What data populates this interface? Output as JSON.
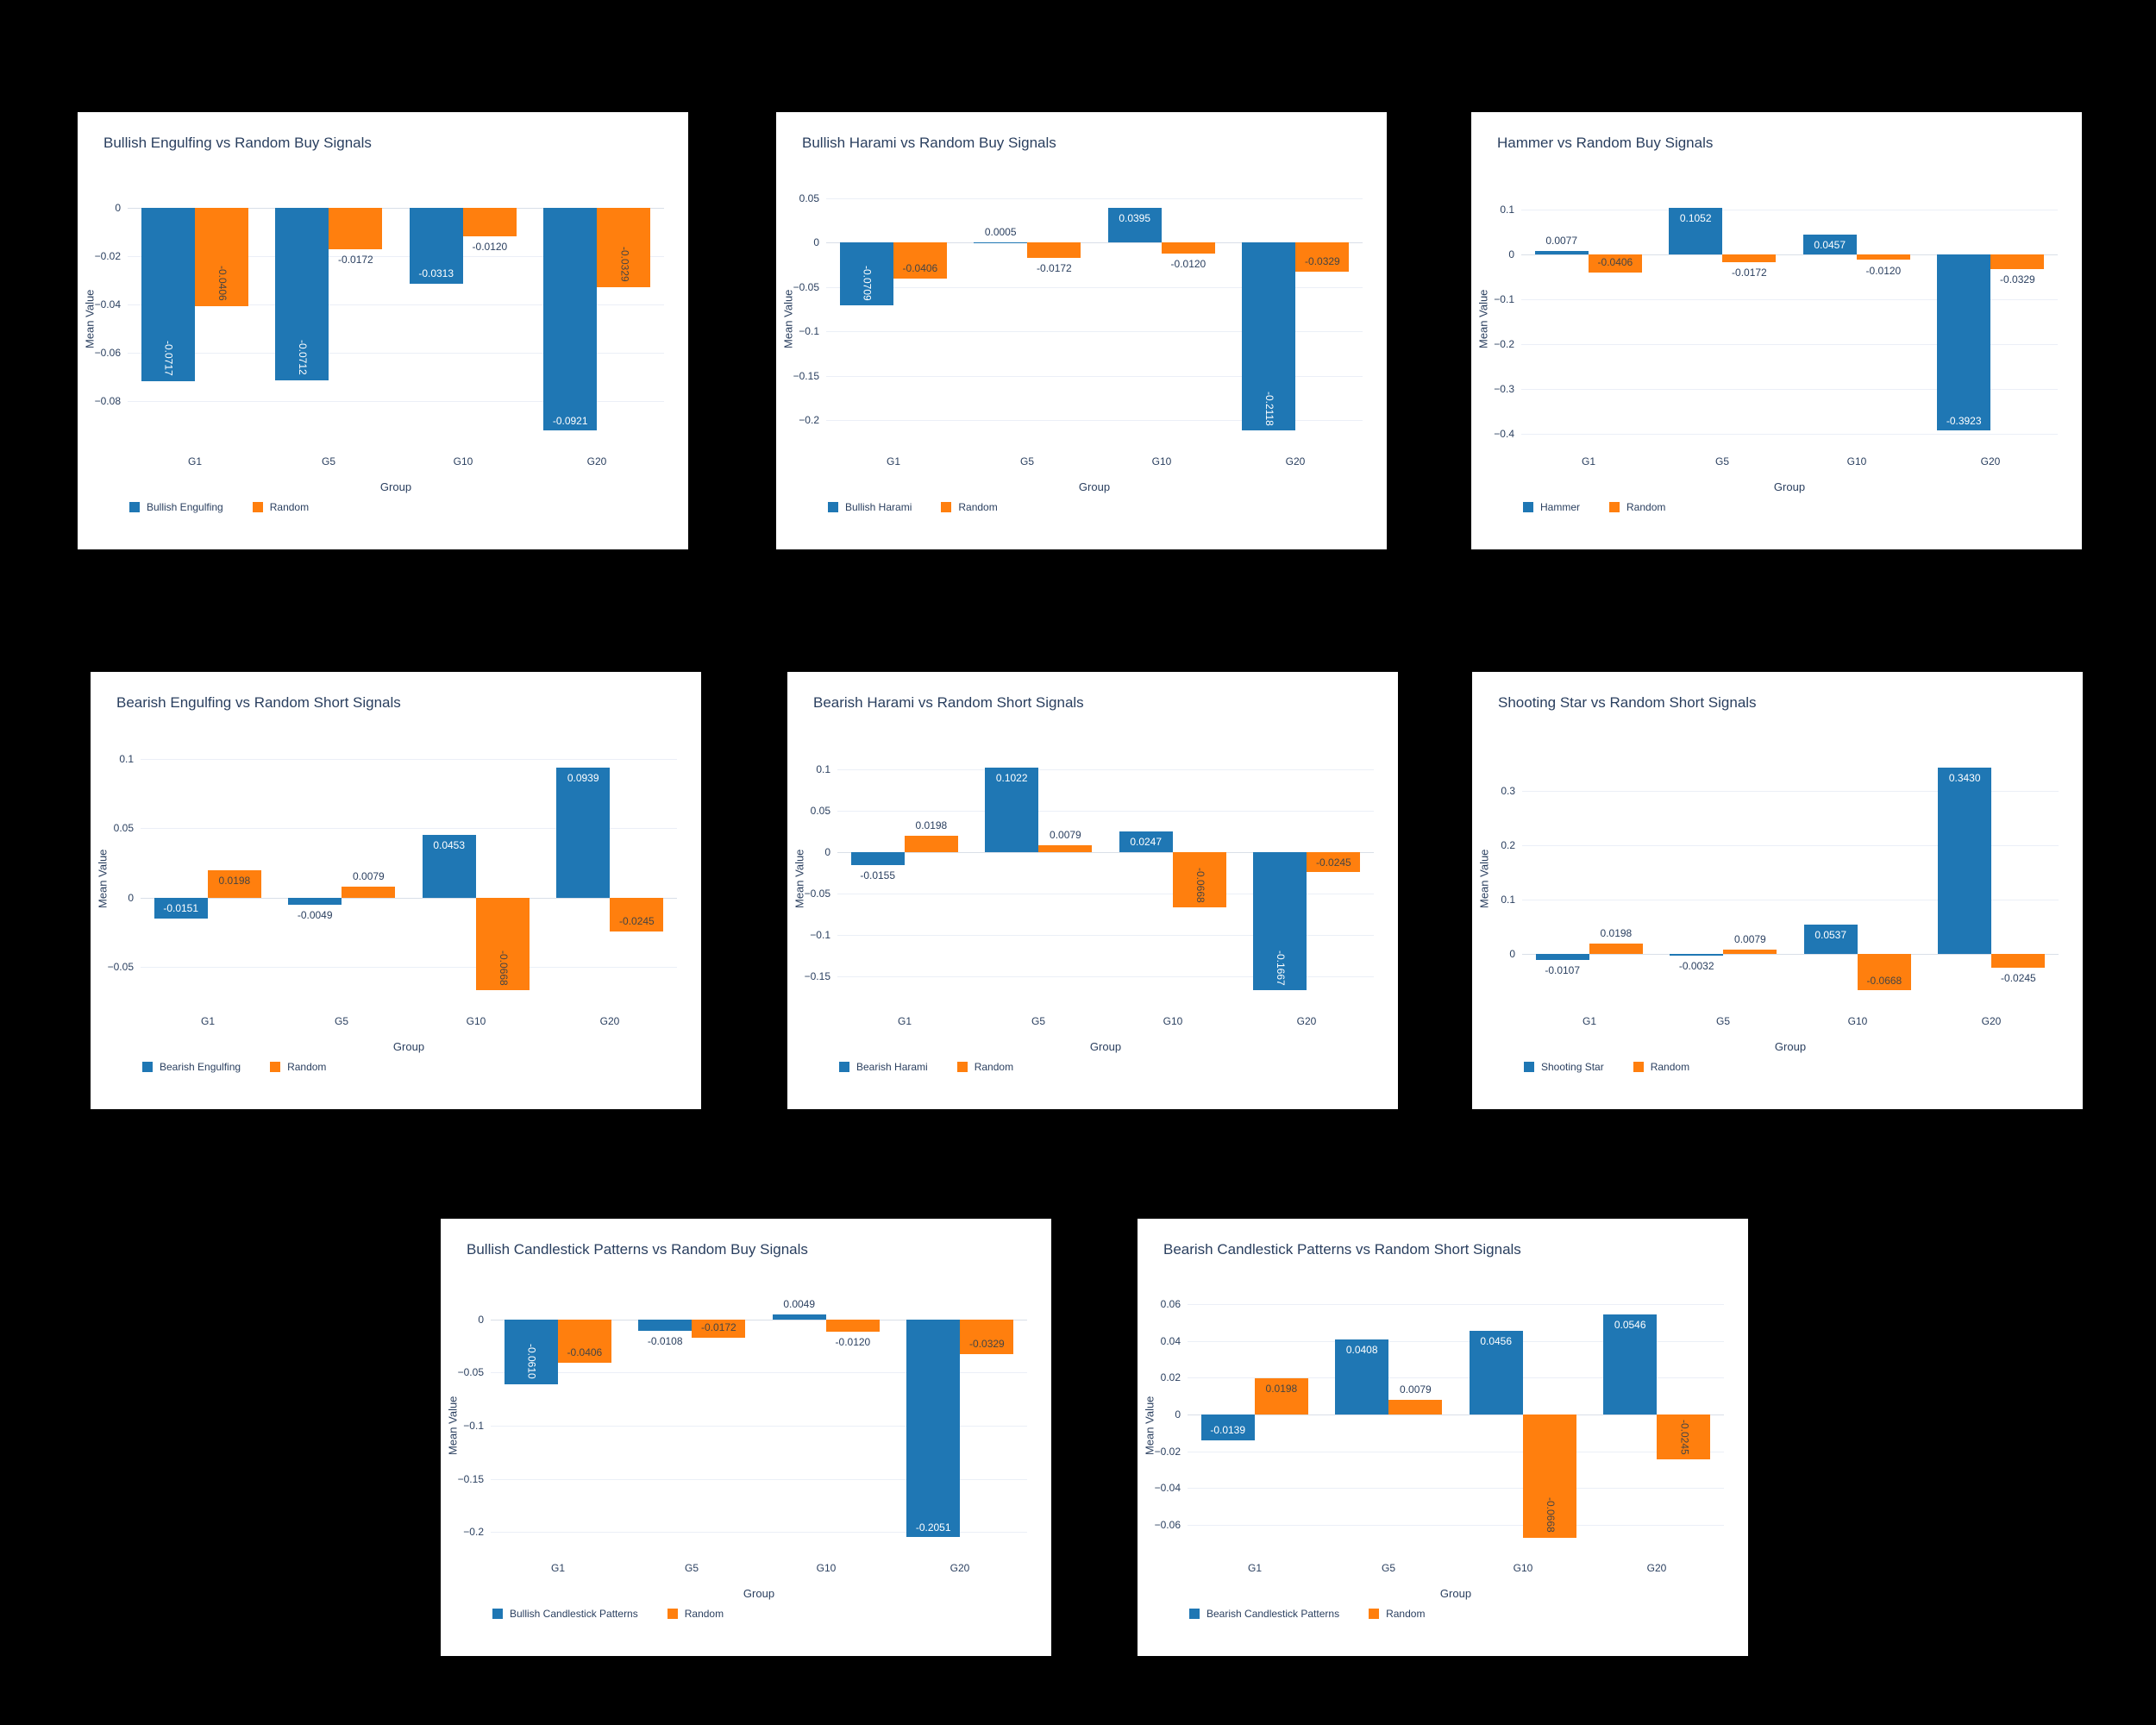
{
  "colors": {
    "blue": "#1f77b4",
    "orange": "#ff7f0e",
    "text": "#2a3f5f",
    "inside_blue_text": "#ffffff",
    "inside_orange_text": "#444444",
    "grid": "#ebeff7",
    "zero_line": "#d9dfe8",
    "panel_bg": "#ffffff",
    "page_bg": "#000000"
  },
  "chart_data": [
    {
      "type": "bar",
      "title": "Bullish Engulfing vs Random Buy Signals",
      "xlabel": "Group",
      "ylabel": "Mean Value",
      "categories": [
        "G1",
        "G5",
        "G10",
        "G20"
      ],
      "yticks": [
        {
          "v": 0,
          "label": "0"
        },
        {
          "v": -0.02,
          "label": "−0.02"
        },
        {
          "v": -0.04,
          "label": "−0.04"
        },
        {
          "v": -0.06,
          "label": "−0.06"
        },
        {
          "v": -0.08,
          "label": "−0.08"
        }
      ],
      "series": [
        {
          "name": "Bullish Engulfing",
          "color": "blue",
          "bars": [
            {
              "v": -0.0717,
              "label": "-0.0717",
              "pos": "in",
              "rot": true
            },
            {
              "v": -0.0712,
              "label": "-0.0712",
              "pos": "in",
              "rot": true
            },
            {
              "v": -0.0313,
              "label": "-0.0313",
              "pos": "in",
              "rot": false
            },
            {
              "v": -0.0921,
              "label": "-0.0921",
              "pos": "in",
              "rot": false
            }
          ]
        },
        {
          "name": "Random",
          "color": "orange",
          "bars": [
            {
              "v": -0.0406,
              "label": "-0.0406",
              "pos": "in",
              "rot": true
            },
            {
              "v": -0.0172,
              "label": "-0.0172",
              "pos": "out",
              "rot": false
            },
            {
              "v": -0.012,
              "label": "-0.0120",
              "pos": "out",
              "rot": false
            },
            {
              "v": -0.0329,
              "label": "-0.0329",
              "pos": "in",
              "rot": true
            }
          ]
        }
      ]
    },
    {
      "type": "bar",
      "title": "Bullish Harami vs Random Buy Signals",
      "xlabel": "Group",
      "ylabel": "Mean Value",
      "categories": [
        "G1",
        "G5",
        "G10",
        "G20"
      ],
      "yticks": [
        {
          "v": 0.05,
          "label": "0.05"
        },
        {
          "v": 0,
          "label": "0"
        },
        {
          "v": -0.05,
          "label": "−0.05"
        },
        {
          "v": -0.1,
          "label": "−0.1"
        },
        {
          "v": -0.15,
          "label": "−0.15"
        },
        {
          "v": -0.2,
          "label": "−0.2"
        }
      ],
      "series": [
        {
          "name": "Bullish Harami",
          "color": "blue",
          "bars": [
            {
              "v": -0.0709,
              "label": "-0.0709",
              "pos": "in",
              "rot": true
            },
            {
              "v": 0.0005,
              "label": "0.0005",
              "pos": "out",
              "rot": false
            },
            {
              "v": 0.0395,
              "label": "0.0395",
              "pos": "in",
              "rot": false
            },
            {
              "v": -0.2118,
              "label": "-0.2118",
              "pos": "in",
              "rot": true
            }
          ]
        },
        {
          "name": "Random",
          "color": "orange",
          "bars": [
            {
              "v": -0.0406,
              "label": "-0.0406",
              "pos": "in",
              "rot": false
            },
            {
              "v": -0.0172,
              "label": "-0.0172",
              "pos": "out",
              "rot": false
            },
            {
              "v": -0.012,
              "label": "-0.0120",
              "pos": "out",
              "rot": false
            },
            {
              "v": -0.0329,
              "label": "-0.0329",
              "pos": "in",
              "rot": false
            }
          ]
        }
      ]
    },
    {
      "type": "bar",
      "title": "Hammer vs Random Buy Signals",
      "xlabel": "Group",
      "ylabel": "Mean Value",
      "categories": [
        "G1",
        "G5",
        "G10",
        "G20"
      ],
      "yticks": [
        {
          "v": 0.1,
          "label": "0.1"
        },
        {
          "v": 0,
          "label": "0"
        },
        {
          "v": -0.1,
          "label": "−0.1"
        },
        {
          "v": -0.2,
          "label": "−0.2"
        },
        {
          "v": -0.3,
          "label": "−0.3"
        },
        {
          "v": -0.4,
          "label": "−0.4"
        }
      ],
      "series": [
        {
          "name": "Hammer",
          "color": "blue",
          "bars": [
            {
              "v": 0.0077,
              "label": "0.0077",
              "pos": "out",
              "rot": false
            },
            {
              "v": 0.1052,
              "label": "0.1052",
              "pos": "in",
              "rot": false
            },
            {
              "v": 0.0457,
              "label": "0.0457",
              "pos": "in",
              "rot": false
            },
            {
              "v": -0.3923,
              "label": "-0.3923",
              "pos": "in",
              "rot": false
            }
          ]
        },
        {
          "name": "Random",
          "color": "orange",
          "bars": [
            {
              "v": -0.0406,
              "label": "-0.0406",
              "pos": "in",
              "rot": false
            },
            {
              "v": -0.0172,
              "label": "-0.0172",
              "pos": "out",
              "rot": false
            },
            {
              "v": -0.012,
              "label": "-0.0120",
              "pos": "out",
              "rot": false
            },
            {
              "v": -0.0329,
              "label": "-0.0329",
              "pos": "out",
              "rot": false
            }
          ]
        }
      ]
    },
    {
      "type": "bar",
      "title": "Bearish Engulfing vs Random Short Signals",
      "xlabel": "Group",
      "ylabel": "Mean Value",
      "categories": [
        "G1",
        "G5",
        "G10",
        "G20"
      ],
      "yticks": [
        {
          "v": 0.1,
          "label": "0.1"
        },
        {
          "v": 0.05,
          "label": "0.05"
        },
        {
          "v": 0,
          "label": "0"
        },
        {
          "v": -0.05,
          "label": "−0.05"
        }
      ],
      "series": [
        {
          "name": "Bearish Engulfing",
          "color": "blue",
          "bars": [
            {
              "v": -0.0151,
              "label": "-0.0151",
              "pos": "in",
              "rot": false
            },
            {
              "v": -0.0049,
              "label": "-0.0049",
              "pos": "out",
              "rot": false
            },
            {
              "v": 0.0453,
              "label": "0.0453",
              "pos": "in",
              "rot": false
            },
            {
              "v": 0.0939,
              "label": "0.0939",
              "pos": "in",
              "rot": false
            }
          ]
        },
        {
          "name": "Random",
          "color": "orange",
          "bars": [
            {
              "v": 0.0198,
              "label": "0.0198",
              "pos": "in",
              "rot": false
            },
            {
              "v": 0.0079,
              "label": "0.0079",
              "pos": "out",
              "rot": false
            },
            {
              "v": -0.0668,
              "label": "-0.0668",
              "pos": "in",
              "rot": true
            },
            {
              "v": -0.0245,
              "label": "-0.0245",
              "pos": "in",
              "rot": false
            }
          ]
        }
      ]
    },
    {
      "type": "bar",
      "title": "Bearish Harami vs Random Short Signals",
      "xlabel": "Group",
      "ylabel": "Mean Value",
      "categories": [
        "G1",
        "G5",
        "G10",
        "G20"
      ],
      "yticks": [
        {
          "v": 0.1,
          "label": "0.1"
        },
        {
          "v": 0.05,
          "label": "0.05"
        },
        {
          "v": 0,
          "label": "0"
        },
        {
          "v": -0.05,
          "label": "−0.05"
        },
        {
          "v": -0.1,
          "label": "−0.1"
        },
        {
          "v": -0.15,
          "label": "−0.15"
        }
      ],
      "series": [
        {
          "name": "Bearish Harami",
          "color": "blue",
          "bars": [
            {
              "v": -0.0155,
              "label": "-0.0155",
              "pos": "out",
              "rot": false
            },
            {
              "v": 0.1022,
              "label": "0.1022",
              "pos": "in",
              "rot": false
            },
            {
              "v": 0.0247,
              "label": "0.0247",
              "pos": "in",
              "rot": false
            },
            {
              "v": -0.1667,
              "label": "-0.1667",
              "pos": "in",
              "rot": true
            }
          ]
        },
        {
          "name": "Random",
          "color": "orange",
          "bars": [
            {
              "v": 0.0198,
              "label": "0.0198",
              "pos": "out",
              "rot": false
            },
            {
              "v": 0.0079,
              "label": "0.0079",
              "pos": "out",
              "rot": false
            },
            {
              "v": -0.0668,
              "label": "-0.0668",
              "pos": "in",
              "rot": true
            },
            {
              "v": -0.0245,
              "label": "-0.0245",
              "pos": "in",
              "rot": false
            }
          ]
        }
      ]
    },
    {
      "type": "bar",
      "title": "Shooting Star vs Random Short Signals",
      "xlabel": "Group",
      "ylabel": "Mean Value",
      "categories": [
        "G1",
        "G5",
        "G10",
        "G20"
      ],
      "yticks": [
        {
          "v": 0.3,
          "label": "0.3"
        },
        {
          "v": 0.2,
          "label": "0.2"
        },
        {
          "v": 0.1,
          "label": "0.1"
        },
        {
          "v": 0,
          "label": "0"
        }
      ],
      "series": [
        {
          "name": "Shooting Star",
          "color": "blue",
          "bars": [
            {
              "v": -0.0107,
              "label": "-0.0107",
              "pos": "out",
              "rot": false
            },
            {
              "v": -0.0032,
              "label": "-0.0032",
              "pos": "out",
              "rot": false
            },
            {
              "v": 0.0537,
              "label": "0.0537",
              "pos": "in",
              "rot": false
            },
            {
              "v": 0.343,
              "label": "0.3430",
              "pos": "in",
              "rot": false
            }
          ]
        },
        {
          "name": "Random",
          "color": "orange",
          "bars": [
            {
              "v": 0.0198,
              "label": "0.0198",
              "pos": "out",
              "rot": false
            },
            {
              "v": 0.0079,
              "label": "0.0079",
              "pos": "out",
              "rot": false
            },
            {
              "v": -0.0668,
              "label": "-0.0668",
              "pos": "in",
              "rot": false
            },
            {
              "v": -0.0245,
              "label": "-0.0245",
              "pos": "out",
              "rot": false
            }
          ]
        }
      ]
    },
    {
      "type": "bar",
      "title": "Bullish Candlestick Patterns vs Random Buy Signals",
      "xlabel": "Group",
      "ylabel": "Mean Value",
      "categories": [
        "G1",
        "G5",
        "G10",
        "G20"
      ],
      "yticks": [
        {
          "v": 0,
          "label": "0"
        },
        {
          "v": -0.05,
          "label": "−0.05"
        },
        {
          "v": -0.1,
          "label": "−0.1"
        },
        {
          "v": -0.15,
          "label": "−0.15"
        },
        {
          "v": -0.2,
          "label": "−0.2"
        }
      ],
      "series": [
        {
          "name": "Bullish Candlestick Patterns",
          "color": "blue",
          "bars": [
            {
              "v": -0.061,
              "label": "-0.0610",
              "pos": "in",
              "rot": true
            },
            {
              "v": -0.0108,
              "label": "-0.0108",
              "pos": "out",
              "rot": false
            },
            {
              "v": 0.0049,
              "label": "0.0049",
              "pos": "out",
              "rot": false
            },
            {
              "v": -0.2051,
              "label": "-0.2051",
              "pos": "in",
              "rot": false
            }
          ]
        },
        {
          "name": "Random",
          "color": "orange",
          "bars": [
            {
              "v": -0.0406,
              "label": "-0.0406",
              "pos": "in",
              "rot": false
            },
            {
              "v": -0.0172,
              "label": "-0.0172",
              "pos": "in",
              "rot": false
            },
            {
              "v": -0.012,
              "label": "-0.0120",
              "pos": "out",
              "rot": false
            },
            {
              "v": -0.0329,
              "label": "-0.0329",
              "pos": "in",
              "rot": false
            }
          ]
        }
      ]
    },
    {
      "type": "bar",
      "title": "Bearish Candlestick Patterns vs Random Short Signals",
      "xlabel": "Group",
      "ylabel": "Mean Value",
      "categories": [
        "G1",
        "G5",
        "G10",
        "G20"
      ],
      "yticks": [
        {
          "v": 0.06,
          "label": "0.06"
        },
        {
          "v": 0.04,
          "label": "0.04"
        },
        {
          "v": 0.02,
          "label": "0.02"
        },
        {
          "v": 0,
          "label": "0"
        },
        {
          "v": -0.02,
          "label": "−0.02"
        },
        {
          "v": -0.04,
          "label": "−0.04"
        },
        {
          "v": -0.06,
          "label": "−0.06"
        }
      ],
      "series": [
        {
          "name": "Bearish Candlestick Patterns",
          "color": "blue",
          "bars": [
            {
              "v": -0.0139,
              "label": "-0.0139",
              "pos": "in",
              "rot": false
            },
            {
              "v": 0.0408,
              "label": "0.0408",
              "pos": "in",
              "rot": false
            },
            {
              "v": 0.0456,
              "label": "0.0456",
              "pos": "in",
              "rot": false
            },
            {
              "v": 0.0546,
              "label": "0.0546",
              "pos": "in",
              "rot": false
            }
          ]
        },
        {
          "name": "Random",
          "color": "orange",
          "bars": [
            {
              "v": 0.0198,
              "label": "0.0198",
              "pos": "in",
              "rot": false
            },
            {
              "v": 0.0079,
              "label": "0.0079",
              "pos": "out",
              "rot": false
            },
            {
              "v": -0.0668,
              "label": "-0.0668",
              "pos": "in",
              "rot": true
            },
            {
              "v": -0.0245,
              "label": "-0.0245",
              "pos": "in",
              "rot": true
            }
          ]
        }
      ]
    }
  ]
}
